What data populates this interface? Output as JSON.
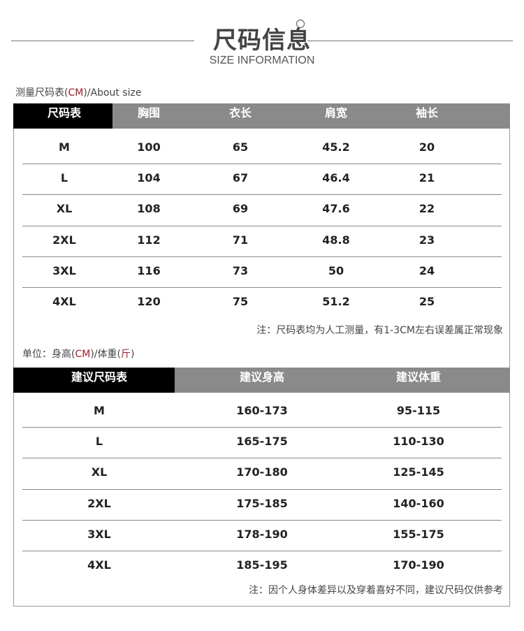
{
  "header": {
    "title": "尺码信息",
    "subtitle": "SIZE INFORMATION"
  },
  "measure": {
    "label_prefix": "测量尺码表(",
    "label_unit": "CM",
    "label_suffix": ")/About size",
    "columns": [
      "尺码表",
      "胸围",
      "衣长",
      "肩宽",
      "袖长"
    ],
    "rows": [
      [
        "M",
        "100",
        "65",
        "45.2",
        "20"
      ],
      [
        "L",
        "104",
        "67",
        "46.4",
        "21"
      ],
      [
        "XL",
        "108",
        "69",
        "47.6",
        "22"
      ],
      [
        "2XL",
        "112",
        "71",
        "48.8",
        "23"
      ],
      [
        "3XL",
        "116",
        "73",
        "50",
        "24"
      ],
      [
        "4XL",
        "120",
        "75",
        "51.2",
        "25"
      ]
    ],
    "note": "注：尺码表均为人工测量，有1-3CM左右误差属正常现象"
  },
  "recommend": {
    "label_prefix": "单位：身高(",
    "label_unit1": "CM",
    "label_mid": ")/体重(",
    "label_unit2": "斤",
    "label_suffix": ")",
    "columns": [
      "建议尺码表",
      "建议身高",
      "建议体重"
    ],
    "rows": [
      [
        "M",
        "160-173",
        "95-115"
      ],
      [
        "L",
        "165-175",
        "110-130"
      ],
      [
        "XL",
        "170-180",
        "125-145"
      ],
      [
        "2XL",
        "175-185",
        "140-160"
      ],
      [
        "3XL",
        "178-190",
        "155-175"
      ],
      [
        "4XL",
        "185-195",
        "170-190"
      ]
    ],
    "note": "注：因个人身体差异以及穿着喜好不同，建议尺码仅供参考"
  },
  "colors": {
    "header_black": "#000000",
    "header_gray": "#8a8a8a",
    "accent_red": "#a01c2c"
  }
}
